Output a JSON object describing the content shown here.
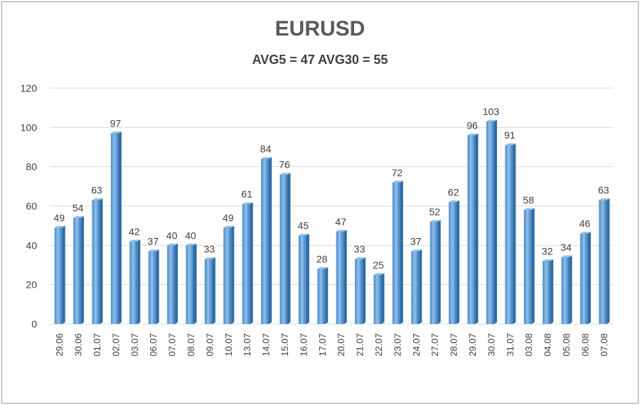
{
  "chart_data": {
    "type": "bar",
    "title": "EURUSD",
    "subtitle": "AVG5 = 47 AVG30 = 55",
    "categories": [
      "29.06",
      "30.06",
      "01.07",
      "02.07",
      "03.07",
      "06.07",
      "07.07",
      "08.07",
      "09.07",
      "10.07",
      "13.07",
      "14.07",
      "15.07",
      "16.07",
      "17.07",
      "20.07",
      "21.07",
      "22.07",
      "23.07",
      "24.07",
      "27.07",
      "28.07",
      "29.07",
      "30.07",
      "31.07",
      "03.08",
      "04.08",
      "05.08",
      "06.08",
      "07.08"
    ],
    "values": [
      49,
      54,
      63,
      97,
      42,
      37,
      40,
      40,
      33,
      49,
      61,
      84,
      76,
      45,
      28,
      47,
      33,
      25,
      72,
      37,
      52,
      62,
      96,
      103,
      91,
      58,
      32,
      34,
      46,
      63
    ],
    "yticks": [
      "0",
      "20",
      "40",
      "60",
      "80",
      "100",
      "120"
    ],
    "ylim": [
      0,
      120
    ],
    "grid": true,
    "legend": "none",
    "colors": {
      "bar_light": "#8fbde8",
      "bar_mid": "#5b9bd5",
      "bar_dark": "#2e6da4",
      "grid": "#d9d9d9",
      "text": "#404040"
    }
  }
}
